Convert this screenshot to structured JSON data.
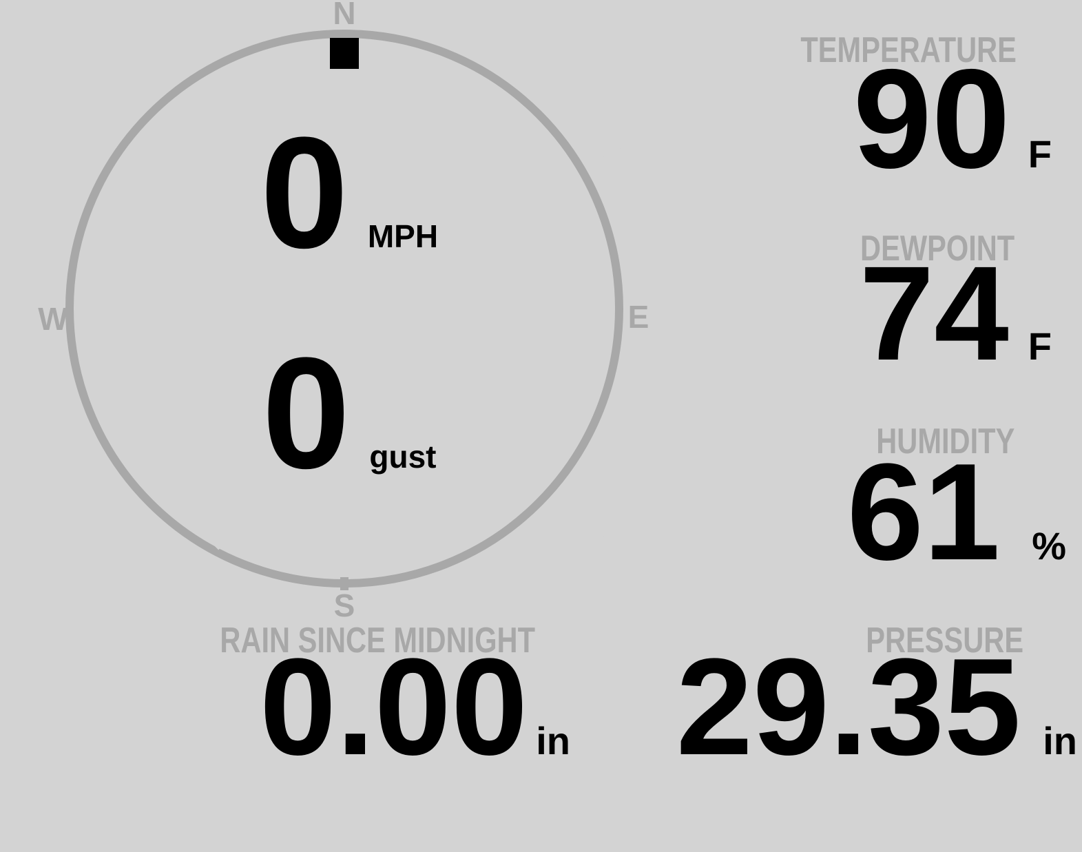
{
  "colors": {
    "background": "#d3d3d3",
    "muted": "#a8a8a8",
    "text": "#000000"
  },
  "wind": {
    "compass": {
      "north": "N",
      "east": "E",
      "south": "S",
      "west": "W"
    },
    "direction_deg": 0,
    "speed": {
      "value": "0",
      "unit": "MPH"
    },
    "gust": {
      "value": "0",
      "unit": "gust"
    }
  },
  "metrics": {
    "temperature": {
      "label": "TEMPERATURE",
      "value": "90",
      "unit": "F"
    },
    "dewpoint": {
      "label": "DEWPOINT",
      "value": "74",
      "unit": "F"
    },
    "humidity": {
      "label": "HUMIDITY",
      "value": "61",
      "unit": "%"
    },
    "rain": {
      "label": "RAIN SINCE MIDNIGHT",
      "value": "0.00",
      "unit": "in"
    },
    "pressure": {
      "label": "PRESSURE",
      "value": "29.35",
      "unit": "in"
    }
  }
}
